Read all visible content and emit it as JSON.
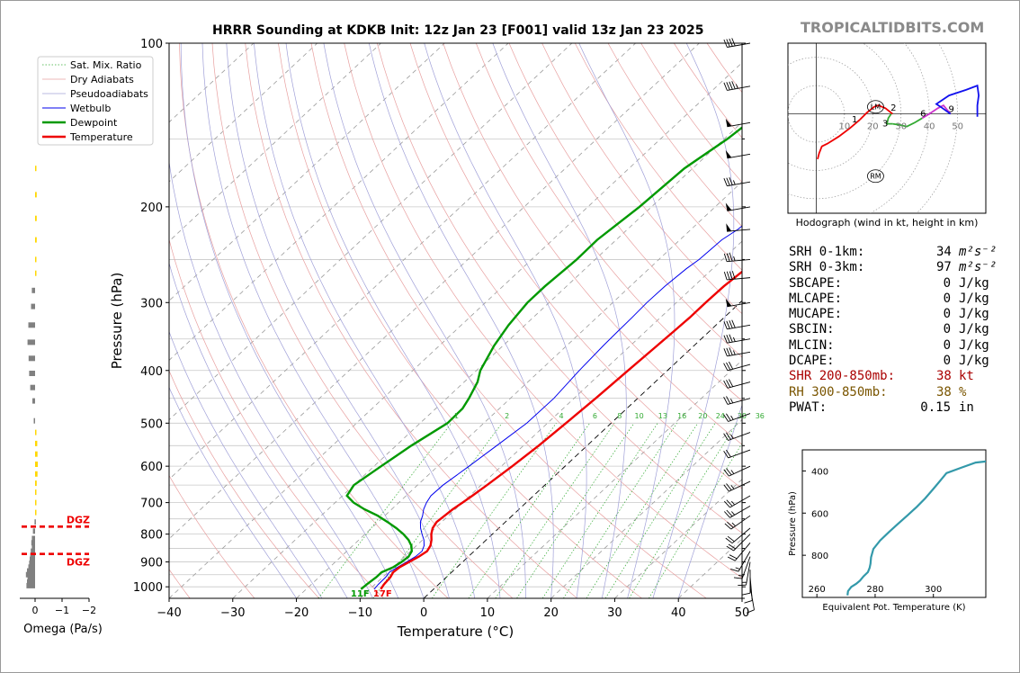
{
  "header": {
    "title": "HRRR Sounding at KDKB Init: 12z Jan 23 [F001] valid 13z Jan 23 2025",
    "brand": "TROPICALTIDBITS.COM"
  },
  "colors": {
    "temperature": "#ee0000",
    "dewpoint": "#009900",
    "wetbulb": "#0000ee",
    "dry_adiabat": "#e8a0a0",
    "pseudoadiabat": "#a0a0d8",
    "mixing_ratio": "#33aa33",
    "shr": "#aa0000",
    "rh": "#7a5500",
    "theta_e": "#3399aa",
    "omega_up": "#ffd700",
    "omega_down": "#808080",
    "dgz": "#ee0000"
  },
  "chart_data": [
    {
      "type": "line",
      "name": "skew-t",
      "xlabel": "Temperature (°C)",
      "ylabel": "Pressure (hPa)",
      "xlim": [
        -40,
        50
      ],
      "ylim": [
        1050,
        100
      ],
      "x_ticks": [
        -40,
        -30,
        -20,
        -10,
        0,
        10,
        20,
        30,
        40,
        50
      ],
      "x_tick_labels": [
        "−40",
        "−30",
        "−20",
        "−10",
        "0",
        "10",
        "20",
        "30",
        "40",
        "50"
      ],
      "y_ticks": [
        100,
        200,
        300,
        400,
        500,
        600,
        700,
        800,
        900,
        1000
      ],
      "y_tick_labels": [
        "100",
        "200",
        "300",
        "400",
        "500",
        "600",
        "700",
        "800",
        "900",
        "1000"
      ],
      "y_scale": "log",
      "legend_position": "top-left",
      "legend": [
        "Sat. Mix. Ratio",
        "Dry Adiabats",
        "Pseudoadiabats",
        "Wetbulb",
        "Dewpoint",
        "Temperature"
      ],
      "surface_labels": {
        "dewpoint": "11F",
        "temperature": "17F"
      },
      "mixing_ratio_labels": [
        "1",
        "2",
        "4",
        "6",
        "8",
        "10",
        "13",
        "16",
        "20",
        "24",
        "30",
        "36"
      ],
      "series": [
        {
          "name": "Temperature",
          "p": [
            1010,
            990,
            960,
            940,
            920,
            900,
            880,
            860,
            840,
            820,
            800,
            780,
            760,
            740,
            720,
            700,
            680,
            650,
            600,
            550,
            500,
            450,
            400,
            360,
            340,
            320,
            300,
            280,
            260,
            250,
            240,
            230,
            220,
            200,
            180,
            170,
            150,
            140,
            130,
            120,
            110,
            100
          ],
          "t": [
            -8.3,
            -8.6,
            -8.8,
            -9.2,
            -9.0,
            -8.4,
            -7.8,
            -7.4,
            -7.8,
            -8.6,
            -9.6,
            -10.4,
            -10.8,
            -10.6,
            -10.4,
            -10.0,
            -9.6,
            -9.1,
            -8.3,
            -7.6,
            -7.1,
            -6.6,
            -6.2,
            -5.8,
            -5.6,
            -5.4,
            -5.4,
            -5.3,
            -4.8,
            -4.2,
            -4.0,
            -3.8,
            -2.8,
            -2.4,
            -1.6,
            -1.4,
            -0.4,
            -0.3,
            -0.4,
            -0.7,
            -1.1,
            -1.8
          ]
        },
        {
          "name": "Dewpoint",
          "p": [
            1010,
            990,
            960,
            940,
            920,
            900,
            880,
            860,
            840,
            820,
            800,
            780,
            760,
            740,
            720,
            700,
            680,
            650,
            600,
            550,
            500,
            470,
            450,
            420,
            400,
            360,
            330,
            300,
            280,
            250,
            230,
            200,
            170,
            150,
            130,
            110,
            100
          ],
          "t": [
            -11.4,
            -11.3,
            -11.0,
            -11.0,
            -10.0,
            -9.6,
            -9.4,
            -9.8,
            -10.8,
            -12.2,
            -14.0,
            -16.1,
            -18.5,
            -21.1,
            -24.3,
            -27.1,
            -29.3,
            -30.0,
            -28.9,
            -27.6,
            -25.7,
            -25.8,
            -26.5,
            -27.9,
            -29.4,
            -31.4,
            -32.6,
            -33.4,
            -33.4,
            -32.9,
            -33.0,
            -31.9,
            -31.3,
            -29.5,
            -28.3,
            -25.6,
            -22.8
          ]
        }
      ],
      "wind_barbs": {
        "p": [
          100,
          120,
          140,
          160,
          180,
          200,
          220,
          250,
          270,
          300,
          330,
          350,
          370,
          390,
          420,
          450,
          480,
          520,
          560,
          600,
          640,
          680,
          710,
          740,
          780,
          800,
          830,
          860,
          880,
          900,
          930,
          960,
          1000
        ],
        "speed_kt": [
          40,
          45,
          50,
          50,
          35,
          50,
          50,
          35,
          40,
          50,
          40,
          35,
          35,
          30,
          30,
          25,
          25,
          25,
          20,
          25,
          25,
          25,
          25,
          25,
          20,
          20,
          20,
          15,
          15,
          15,
          10,
          10,
          10
        ],
        "dir_deg": [
          260,
          260,
          260,
          260,
          260,
          260,
          265,
          265,
          265,
          260,
          260,
          260,
          260,
          255,
          255,
          255,
          250,
          250,
          250,
          245,
          245,
          240,
          240,
          235,
          230,
          225,
          220,
          210,
          200,
          190,
          180,
          175,
          170
        ]
      }
    },
    {
      "type": "line",
      "name": "hodograph",
      "caption": "Hodograph (wind in kt, height in km)",
      "ring_labels": [
        "10",
        "20",
        "30",
        "40",
        "50"
      ],
      "height_labels": [
        "1",
        "2",
        "3",
        "6",
        "9"
      ],
      "markers": [
        "LM",
        "RM"
      ],
      "series": [
        {
          "name": "0-1 km",
          "u": [
            0.5,
            1.0,
            2.0,
            4.0,
            8.0,
            12.0,
            15.5
          ],
          "v": [
            -16.0,
            -14.0,
            -11.5,
            -10.5,
            -8.0,
            -5.0,
            -2.0
          ]
        },
        {
          "name": "1-2 km",
          "u": [
            15.5,
            18.0,
            20.5,
            22.0,
            24.5,
            27.0
          ],
          "v": [
            -2.0,
            0.5,
            2.5,
            3.0,
            2.0,
            0.0
          ]
        },
        {
          "name": "2-3 km",
          "u": [
            26.5,
            25.5,
            25.0,
            27.0
          ],
          "v": [
            0.0,
            -1.5,
            -3.5,
            -3.5
          ]
        },
        {
          "name": "3-6 km",
          "u": [
            27.0,
            30.0,
            32.0,
            35.0,
            37.5
          ],
          "v": [
            -3.5,
            -4.0,
            -4.5,
            -3.0,
            -1.5
          ]
        },
        {
          "name": "6-9 km",
          "u": [
            37.5,
            40.0,
            43.0,
            45.0,
            47.5
          ],
          "v": [
            -1.5,
            0.0,
            2.0,
            3.0,
            0.0
          ]
        },
        {
          "name": "9+ km",
          "u": [
            47.5,
            44.0,
            42.5,
            47.0,
            53.0,
            57.0,
            57.5,
            57.0,
            57.0,
            57.0
          ],
          "v": [
            0.0,
            2.5,
            3.5,
            6.5,
            8.5,
            10.0,
            6.5,
            3.0,
            0.0,
            -1.0
          ]
        }
      ],
      "height_points": {
        "u": [
          15.5,
          27.0,
          26.0,
          37.5,
          47.5
        ],
        "v": [
          -2.0,
          0.5,
          -3.5,
          -1.5,
          0.0
        ]
      },
      "storm_motion": {
        "lm_u": 21.0,
        "lm_v": 2.5,
        "rm_u": 21.0,
        "rm_v": -22.0
      },
      "xlim": [
        -10,
        60
      ],
      "ylim": [
        -33,
        25
      ]
    },
    {
      "type": "line",
      "name": "theta-e profile",
      "xlabel": "Equivalent Pot. Temperature (K)",
      "ylabel": "Pressure (hPa)",
      "xlim": [
        255,
        318
      ],
      "ylim": [
        1000,
        300
      ],
      "x_tick_labels": [
        "260",
        "280",
        "300"
      ],
      "y_tick_labels": [
        "400",
        "600",
        "800"
      ],
      "theta_e_K": [
        270.5,
        270.7,
        271.8,
        273.5,
        274.8,
        276.0,
        277.5,
        278.1,
        278.4,
        278.6,
        279.4,
        281.7,
        284.7,
        287.9,
        291.2,
        294.3,
        297.2,
        299.7,
        301.5,
        302.7,
        304.5,
        309.5,
        314.5,
        318.0
      ],
      "p_hPa": [
        990,
        970,
        950,
        935,
        920,
        900,
        880,
        860,
        840,
        810,
        770,
        730,
        690,
        650,
        610,
        570,
        530,
        490,
        460,
        440,
        410,
        385,
        360,
        355
      ]
    },
    {
      "type": "bar",
      "name": "omega profile",
      "xlabel": "Omega (Pa/s)",
      "x_tick_labels": [
        "0",
        "−1",
        "−2"
      ],
      "dgz_label": "DGZ",
      "dgz_top_hPa": 775,
      "dgz_bottom_hPa": 870,
      "p": [
        170,
        190,
        210,
        230,
        250,
        265,
        285,
        305,
        330,
        355,
        380,
        405,
        430,
        455,
        495,
        520,
        545,
        570,
        595,
        620,
        645,
        670,
        700,
        730,
        760,
        790,
        815,
        830,
        845,
        860,
        875,
        890,
        905,
        920,
        935,
        950,
        965,
        980,
        995
      ],
      "omega_Pa_s": [
        -0.05,
        -0.06,
        -0.06,
        -0.06,
        -0.03,
        -0.02,
        0.12,
        0.15,
        0.25,
        0.28,
        0.24,
        0.22,
        0.18,
        0.1,
        0.05,
        -0.05,
        -0.08,
        -0.09,
        -0.1,
        -0.09,
        -0.06,
        -0.05,
        -0.04,
        -0.02,
        0.02,
        0.08,
        0.12,
        0.14,
        0.12,
        0.16,
        0.18,
        0.2,
        0.22,
        0.25,
        0.3,
        0.34,
        0.28,
        0.3,
        0.32
      ]
    }
  ],
  "stats": [
    {
      "label": "SRH 0-1km:",
      "value": "34",
      "unit": "m²s⁻²",
      "color": "#000000"
    },
    {
      "label": "SRH 0-3km:",
      "value": "97",
      "unit": "m²s⁻²",
      "color": "#000000"
    },
    {
      "label": "SBCAPE:",
      "value": "0",
      "unit": "J/kg",
      "color": "#000000"
    },
    {
      "label": "MLCAPE:",
      "value": "0",
      "unit": "J/kg",
      "color": "#000000"
    },
    {
      "label": "MUCAPE:",
      "value": "0",
      "unit": "J/kg",
      "color": "#000000"
    },
    {
      "label": "SBCIN:",
      "value": "0",
      "unit": "J/kg",
      "color": "#000000"
    },
    {
      "label": "MLCIN:",
      "value": "0",
      "unit": "J/kg",
      "color": "#000000"
    },
    {
      "label": "DCAPE:",
      "value": "0",
      "unit": "J/kg",
      "color": "#000000"
    },
    {
      "label": "SHR 200-850mb:",
      "value": "38",
      "unit": "kt",
      "color": "#aa0000"
    },
    {
      "label": "RH 300-850mb:",
      "value": "38",
      "unit": "%",
      "color": "#7a5500"
    },
    {
      "label": "PWAT:",
      "value": "0.15",
      "unit": "in",
      "color": "#000000"
    }
  ]
}
